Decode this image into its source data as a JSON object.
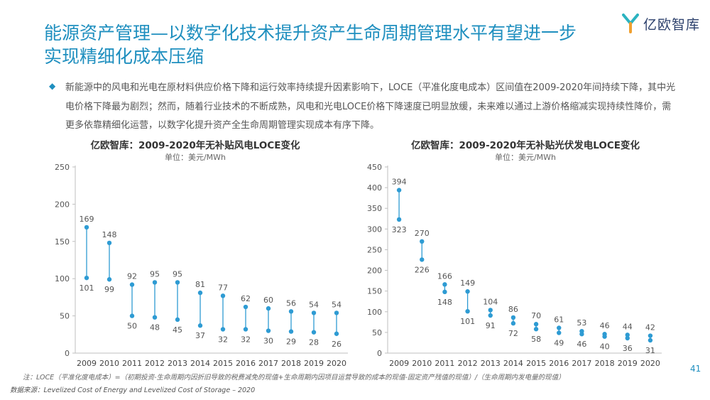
{
  "header": {
    "title": "能源资产管理—以数字化技术提升资产生命周期管理水平有望进一步实现精细化成本压缩",
    "logo_text": "亿欧智库",
    "accent_color": "#1f8fbf",
    "logo_icon": "yiou-logo-icon"
  },
  "intro": {
    "bullet_icon": "diamond-icon",
    "text": "新能源中的风电和光电在原材料供应价格下降和运行效率持续提升因素影响下，LOCE（平准化度电成本）区间值在2009-2020年间持续下降，其中光电价格下降最为剧烈；然而，随着行业技术的不断成熟，风电和光电LOCE价格下降速度已明显放缓，未来难以通过上游价格缩减实现持续性降价，需更多依靠精细化运营，以数字化提升资产全生命周期管理实现成本有序下降。"
  },
  "chart_data": [
    {
      "type": "range",
      "title": "亿欧智库：2009-2020年无补贴风电LOCE变化",
      "unit": "单位：美元/MWh",
      "categories": [
        "2009",
        "2010",
        "2011",
        "2012",
        "2013",
        "2014",
        "2015",
        "2016",
        "2017",
        "2018",
        "2019",
        "2020"
      ],
      "series": [
        {
          "values": [
            169,
            148,
            92,
            95,
            95,
            81,
            77,
            62,
            60,
            56,
            54,
            54
          ]
        },
        {
          "values": [
            101,
            99,
            50,
            48,
            45,
            37,
            32,
            32,
            30,
            29,
            28,
            26
          ]
        }
      ],
      "yticks": [
        0,
        50,
        100,
        150,
        200,
        250
      ],
      "ylim": [
        0,
        250
      ],
      "color": "#2e9bd3"
    },
    {
      "type": "range",
      "title": "亿欧智库：2009-2020年无补贴光伏发电LOCE变化",
      "unit": "单位：美元/MWh",
      "categories": [
        "2009",
        "2010",
        "2011",
        "2012",
        "2013",
        "2014",
        "2015",
        "2016",
        "2017",
        "2018",
        "2019",
        "2020"
      ],
      "series": [
        {
          "values": [
            394,
            270,
            166,
            149,
            104,
            86,
            70,
            61,
            53,
            46,
            44,
            42
          ]
        },
        {
          "values": [
            323,
            226,
            148,
            101,
            91,
            72,
            58,
            49,
            46,
            40,
            36,
            31
          ]
        }
      ],
      "yticks": [
        0,
        50,
        100,
        150,
        200,
        250,
        300,
        350,
        400,
        450
      ],
      "ylim": [
        0,
        450
      ],
      "color": "#2e9bd3"
    }
  ],
  "footer": {
    "note": "注：LOCE（平准化度电成本）=（初期投资-生命周期内因折旧导致的税费减免的现值+生命周期内因项目运营导致的成本的现值-固定资产残值的现值）/（生命周期内发电量的现值）",
    "source": "数据来源：Levelized Cost of Energy and Levelized Cost of Storage – 2020",
    "page_number": "41"
  }
}
